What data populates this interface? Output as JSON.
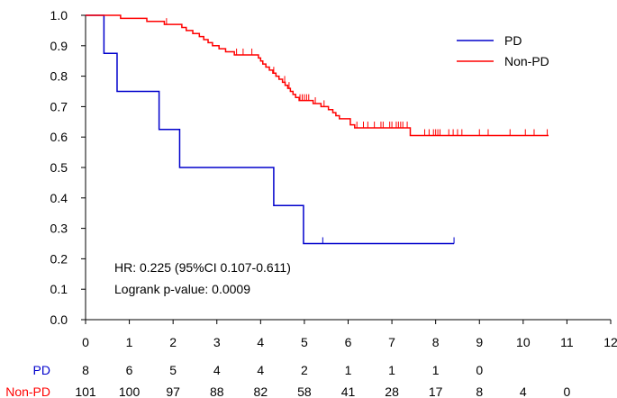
{
  "chart_data": {
    "type": "line",
    "subtype": "kaplan-meier",
    "title": "",
    "xlabel": "",
    "ylabel": "",
    "xlim": [
      0,
      12
    ],
    "ylim": [
      0,
      1.0
    ],
    "x_ticks": [
      "0",
      "1",
      "2",
      "3",
      "4",
      "5",
      "6",
      "7",
      "8",
      "9",
      "10",
      "11",
      "12"
    ],
    "y_ticks": [
      "0.0",
      "0.1",
      "0.2",
      "0.3",
      "0.4",
      "0.5",
      "0.6",
      "0.7",
      "0.8",
      "0.9",
      "1.0"
    ],
    "grid": false,
    "legend_position": "top-right",
    "series": [
      {
        "name": "PD",
        "color": "#0000cc",
        "steps": [
          [
            0,
            1.0
          ],
          [
            0.42,
            0.875
          ],
          [
            0.72,
            0.75
          ],
          [
            1.68,
            0.625
          ],
          [
            2.15,
            0.5
          ],
          [
            4.3,
            0.375
          ],
          [
            4.98,
            0.25
          ],
          [
            8.42,
            0.25
          ]
        ],
        "censors": [
          5.42,
          8.42
        ]
      },
      {
        "name": "Non-PD",
        "color": "#ff0000",
        "steps": [
          [
            0,
            1.0
          ],
          [
            0.8,
            0.99
          ],
          [
            1.4,
            0.98
          ],
          [
            1.8,
            0.97
          ],
          [
            2.2,
            0.96
          ],
          [
            2.3,
            0.95
          ],
          [
            2.45,
            0.94
          ],
          [
            2.6,
            0.93
          ],
          [
            2.7,
            0.92
          ],
          [
            2.8,
            0.91
          ],
          [
            2.9,
            0.9
          ],
          [
            3.05,
            0.89
          ],
          [
            3.2,
            0.88
          ],
          [
            3.4,
            0.87
          ],
          [
            3.95,
            0.86
          ],
          [
            4.0,
            0.85
          ],
          [
            4.05,
            0.84
          ],
          [
            4.12,
            0.83
          ],
          [
            4.2,
            0.82
          ],
          [
            4.28,
            0.81
          ],
          [
            4.35,
            0.8
          ],
          [
            4.42,
            0.79
          ],
          [
            4.5,
            0.78
          ],
          [
            4.56,
            0.77
          ],
          [
            4.62,
            0.76
          ],
          [
            4.68,
            0.75
          ],
          [
            4.74,
            0.74
          ],
          [
            4.8,
            0.73
          ],
          [
            4.88,
            0.72
          ],
          [
            5.2,
            0.71
          ],
          [
            5.38,
            0.7
          ],
          [
            5.55,
            0.69
          ],
          [
            5.65,
            0.68
          ],
          [
            5.72,
            0.67
          ],
          [
            5.8,
            0.66
          ],
          [
            6.05,
            0.64
          ],
          [
            6.15,
            0.63
          ],
          [
            7.42,
            0.605
          ],
          [
            10.58,
            0.605
          ]
        ],
        "censors": [
          1.85,
          3.45,
          3.6,
          3.8,
          4.3,
          4.55,
          4.65,
          4.9,
          4.95,
          5.0,
          5.05,
          5.1,
          5.25,
          5.45,
          6.2,
          6.35,
          6.45,
          6.6,
          6.75,
          6.8,
          6.95,
          7.0,
          7.1,
          7.15,
          7.2,
          7.25,
          7.35,
          7.75,
          7.85,
          7.95,
          8.0,
          8.05,
          8.1,
          8.3,
          8.4,
          8.5,
          8.6,
          9.0,
          9.2,
          9.7,
          10.05,
          10.25,
          10.55
        ]
      }
    ],
    "annotations": [
      "HR: 0.225 (95%CI 0.107-0.611)",
      "Logrank p-value: 0.0009"
    ],
    "risk_table": [
      {
        "name": "PD",
        "color": "#0000cc",
        "counts": [
          "8",
          "6",
          "5",
          "4",
          "4",
          "2",
          "1",
          "1",
          "1",
          "0"
        ]
      },
      {
        "name": "Non-PD",
        "color": "#ff0000",
        "counts": [
          "101",
          "100",
          "97",
          "88",
          "82",
          "58",
          "41",
          "28",
          "17",
          "8",
          "4",
          "0"
        ]
      }
    ]
  }
}
